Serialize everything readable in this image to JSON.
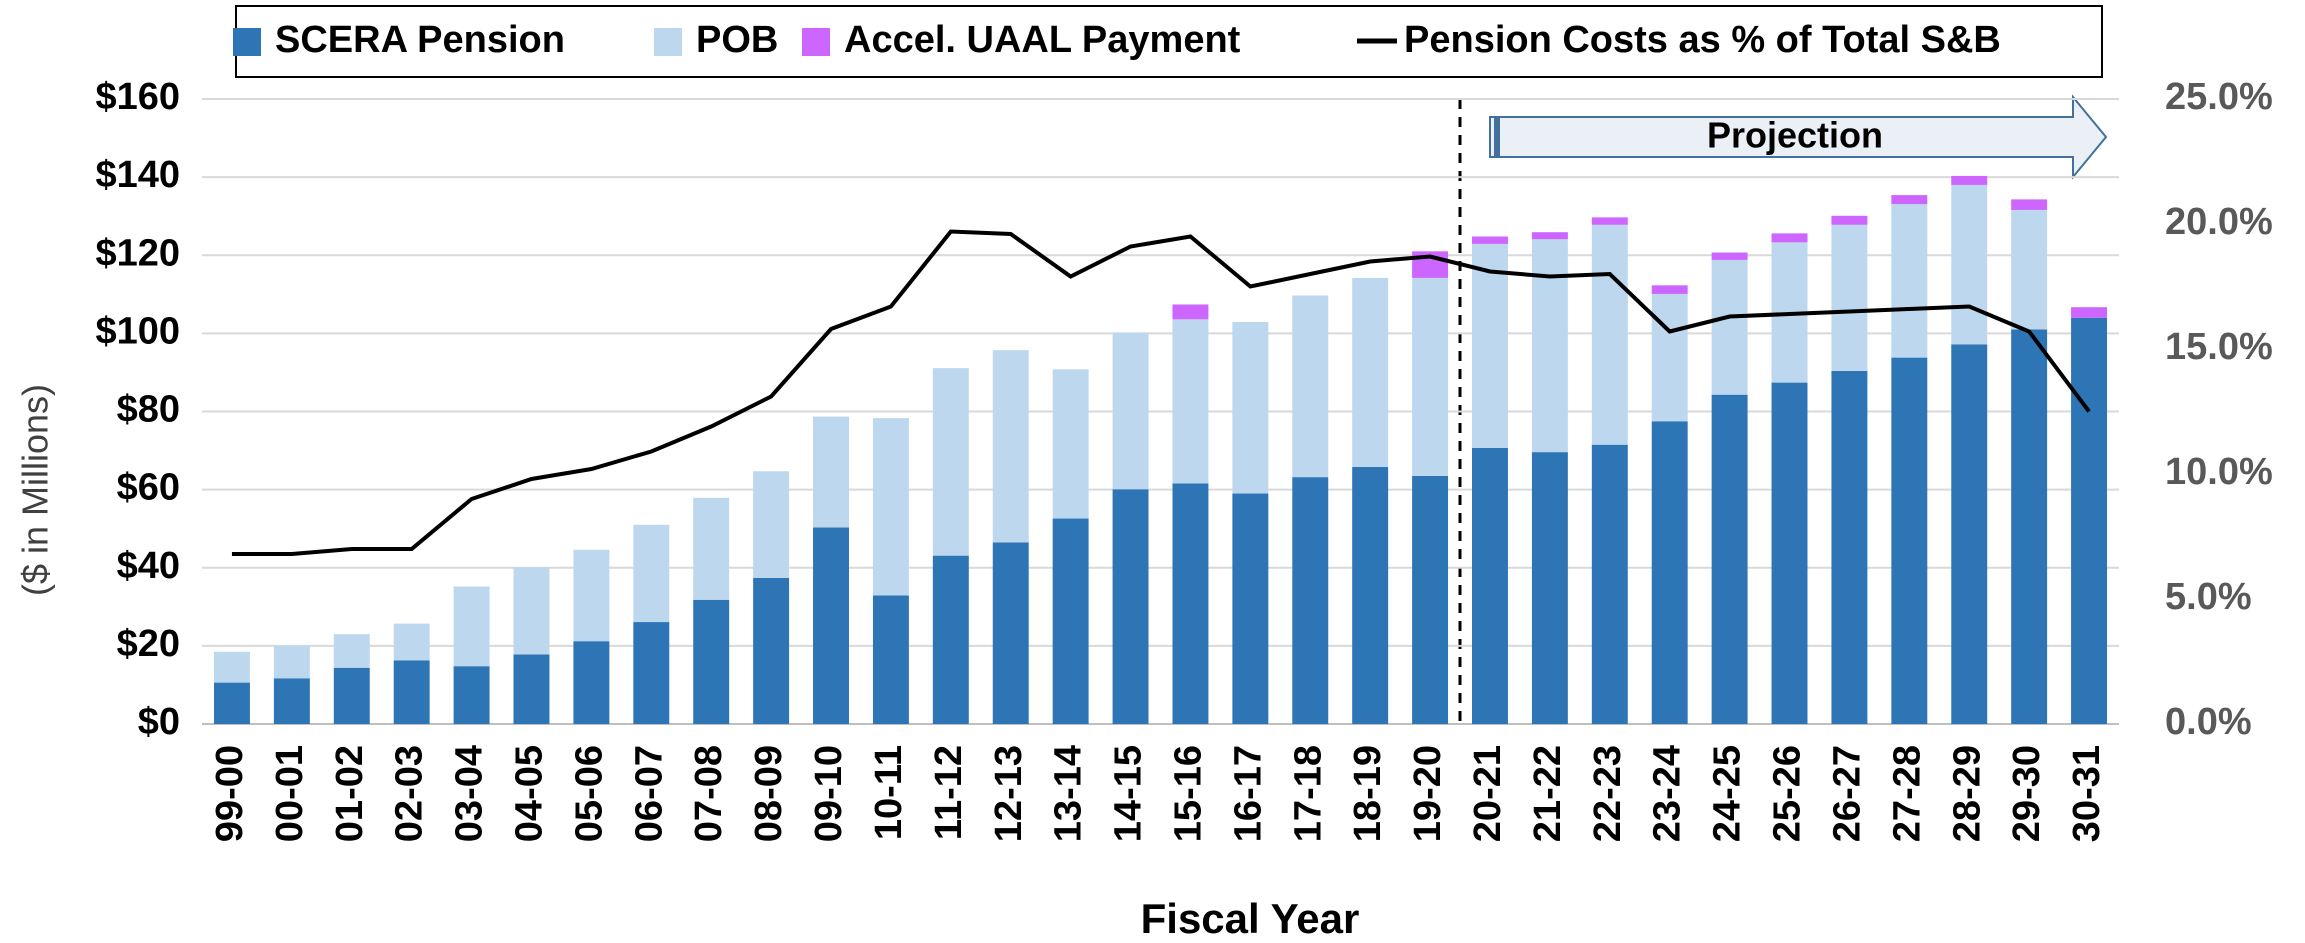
{
  "chart_data": {
    "type": "stacked_bar_line",
    "categories": [
      "99-00",
      "00-01",
      "01-02",
      "02-03",
      "03-04",
      "04-05",
      "05-06",
      "06-07",
      "07-08",
      "08-09",
      "09-10",
      "10-11",
      "11-12",
      "12-13",
      "13-14",
      "14-15",
      "15-16",
      "16-17",
      "17-18",
      "18-19",
      "19-20",
      "20-21",
      "21-22",
      "22-23",
      "23-24",
      "24-25",
      "25-26",
      "26-27",
      "27-28",
      "28-29",
      "29-30",
      "30-31"
    ],
    "series": [
      {
        "name": "SCERA Pension",
        "color": "#2e75b6",
        "values": [
          10.6,
          11.7,
          14.4,
          16.3,
          14.8,
          17.8,
          21.2,
          26.1,
          31.8,
          37.4,
          50.3,
          32.9,
          43.1,
          46.5,
          52.6,
          60.1,
          61.6,
          59,
          63.2,
          65.8,
          63.5,
          70.7,
          69.6,
          71.5,
          77.5,
          84.3,
          87.4,
          90.4,
          93.8,
          97.2,
          101,
          104
        ]
      },
      {
        "name": "POB",
        "color": "#bdd7ee",
        "values": [
          7.9,
          8.3,
          8.6,
          9.4,
          20.4,
          22.3,
          23.4,
          24.9,
          26.1,
          27.3,
          28.4,
          45.4,
          48,
          49.2,
          38.2,
          40.1,
          42,
          43.9,
          46.5,
          48.4,
          50.7,
          52.2,
          54.5,
          56.3,
          32.6,
          34.5,
          35.9,
          37.4,
          39.3,
          40.8,
          30.6,
          0
        ]
      },
      {
        "name": "Accel. UAAL Payment",
        "color": "#cc66ff",
        "values": [
          0,
          0,
          0,
          0,
          0,
          0,
          0,
          0,
          0,
          0,
          0,
          0,
          0,
          0,
          0,
          0,
          3.8,
          0,
          0,
          0,
          6.8,
          1.9,
          1.8,
          1.9,
          2.2,
          1.9,
          2.3,
          2.3,
          2.3,
          2.3,
          2.7,
          2.7
        ]
      },
      {
        "name": "Pension Costs as % of Total S&B",
        "color": "#000000",
        "axis": "y2",
        "values": [
          6.8,
          6.8,
          7.0,
          7.0,
          9.0,
          9.8,
          10.2,
          10.9,
          11.9,
          13.1,
          15.8,
          16.7,
          19.7,
          19.6,
          17.9,
          19.1,
          19.5,
          17.5,
          18.0,
          18.5,
          18.7,
          18.1,
          17.9,
          18.0,
          15.7,
          16.3,
          16.4,
          16.5,
          16.6,
          16.7,
          15.7,
          12.5
        ]
      }
    ],
    "ylabel": "($ in Millions)",
    "xlabel": "Fiscal Year",
    "ylim": [
      0,
      160
    ],
    "yticks": [
      {
        "value": 0,
        "label": "$0"
      },
      {
        "value": 20,
        "label": "$20"
      },
      {
        "value": 40,
        "label": "$40"
      },
      {
        "value": 60,
        "label": "$60"
      },
      {
        "value": 80,
        "label": "$80"
      },
      {
        "value": 100,
        "label": "$100"
      },
      {
        "value": 120,
        "label": "$120"
      },
      {
        "value": 140,
        "label": "$140"
      },
      {
        "value": 160,
        "label": "$160"
      }
    ],
    "y2lim": [
      0,
      25
    ],
    "y2ticks": [
      {
        "value": 0,
        "label": "0.0%"
      },
      {
        "value": 5,
        "label": "5.0%"
      },
      {
        "value": 10,
        "label": "10.0%"
      },
      {
        "value": 15,
        "label": "15.0%"
      },
      {
        "value": 20,
        "label": "20.0%"
      },
      {
        "value": 25,
        "label": "25.0%"
      }
    ],
    "grid": true,
    "legend": "top",
    "annotations": [
      "Projection"
    ]
  }
}
